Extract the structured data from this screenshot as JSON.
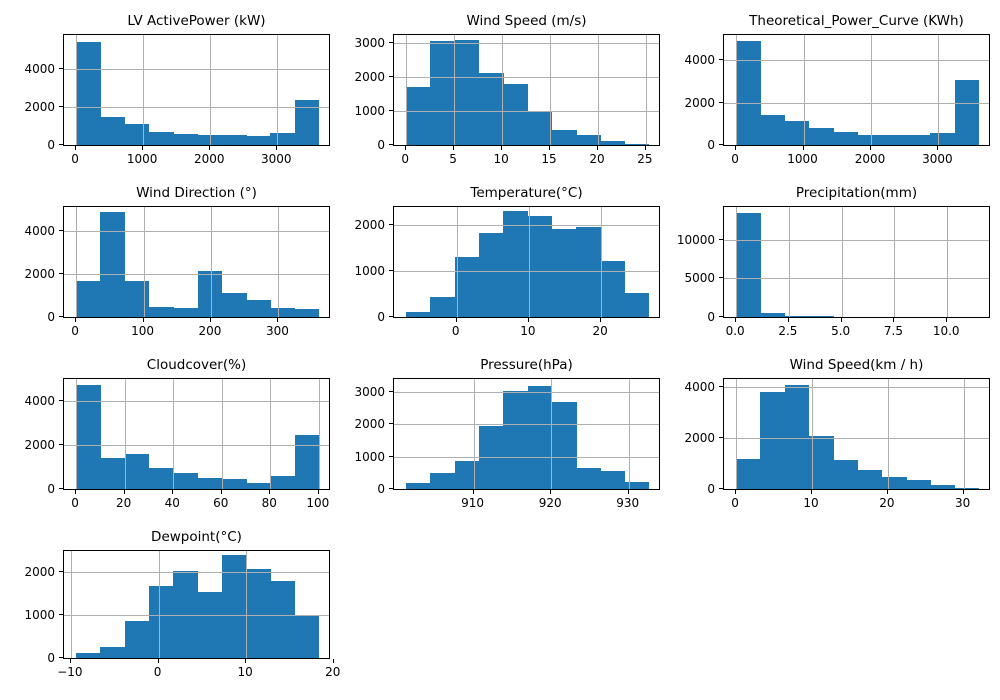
{
  "figure": {
    "background": "#ffffff",
    "bar_color": "#1f77b4",
    "grid_color": "#b0b0b0",
    "spine_color": "#000000",
    "text_color": "#000000",
    "grid": true,
    "layout": "4 rows x 3 cols, last row has 1 subplot"
  },
  "chart_data": [
    {
      "id": "lv-activepower",
      "type": "bar",
      "subtype": "histogram",
      "title": "LV ActivePower (kW)",
      "row": 0,
      "col": 0,
      "bin_start": 0,
      "bin_end": 3620,
      "bins": 10,
      "counts": [
        5440,
        1500,
        1090,
        700,
        560,
        550,
        530,
        500,
        620,
        2350
      ],
      "xlim": [
        -181,
        3801
      ],
      "ylim": [
        0,
        5800
      ],
      "xticks": [
        0,
        1000,
        2000,
        3000
      ],
      "xtick_labels": [
        "0",
        "1000",
        "2000",
        "3000"
      ],
      "yticks": [
        0,
        2000,
        4000
      ],
      "ytick_labels": [
        "0",
        "2000",
        "4000"
      ],
      "grid": true
    },
    {
      "id": "wind-speed-ms",
      "type": "bar",
      "subtype": "histogram",
      "title": "Wind Speed (m/s)",
      "row": 0,
      "col": 1,
      "bin_start": 0,
      "bin_end": 25.3,
      "bins": 10,
      "counts": [
        1720,
        3080,
        3100,
        2120,
        1790,
        1010,
        440,
        310,
        120,
        40
      ],
      "xlim": [
        -1.27,
        26.57
      ],
      "ylim": [
        0,
        3250
      ],
      "xticks": [
        0,
        5,
        10,
        15,
        20,
        25
      ],
      "xtick_labels": [
        "0",
        "5",
        "10",
        "15",
        "20",
        "25"
      ],
      "yticks": [
        0,
        1000,
        2000,
        3000
      ],
      "ytick_labels": [
        "0",
        "1000",
        "2000",
        "3000"
      ],
      "grid": true
    },
    {
      "id": "theoretical-power-curve",
      "type": "bar",
      "subtype": "histogram",
      "title": "Theoretical_Power_Curve (KWh)",
      "row": 0,
      "col": 2,
      "bin_start": 0,
      "bin_end": 3600,
      "bins": 10,
      "counts": [
        4900,
        1400,
        1130,
        790,
        600,
        450,
        460,
        470,
        560,
        3060
      ],
      "xlim": [
        -180,
        3780
      ],
      "ylim": [
        0,
        5200
      ],
      "xticks": [
        0,
        1000,
        2000,
        3000
      ],
      "xtick_labels": [
        "0",
        "1000",
        "2000",
        "3000"
      ],
      "yticks": [
        0,
        2000,
        4000
      ],
      "ytick_labels": [
        "0",
        "2000",
        "4000"
      ],
      "grid": true
    },
    {
      "id": "wind-direction",
      "type": "bar",
      "subtype": "histogram",
      "title": "Wind Direction (°)",
      "row": 1,
      "col": 0,
      "bin_start": 0,
      "bin_end": 360,
      "bins": 10,
      "counts": [
        1680,
        4850,
        1680,
        470,
        420,
        2150,
        1120,
        800,
        440,
        390
      ],
      "xlim": [
        -18,
        378
      ],
      "ylim": [
        0,
        5100
      ],
      "xticks": [
        0,
        100,
        200,
        300
      ],
      "xtick_labels": [
        "0",
        "100",
        "200",
        "300"
      ],
      "yticks": [
        0,
        2000,
        4000
      ],
      "ytick_labels": [
        "0",
        "2000",
        "4000"
      ],
      "grid": true
    },
    {
      "id": "temperature",
      "type": "bar",
      "subtype": "histogram",
      "title": "Temperature(°C)",
      "row": 1,
      "col": 1,
      "bin_start": -7,
      "bin_end": 26.6,
      "bins": 10,
      "counts": [
        110,
        440,
        1310,
        1830,
        2310,
        2200,
        1930,
        1970,
        1230,
        530
      ],
      "xlim": [
        -8.68,
        28.28
      ],
      "ylim": [
        0,
        2400
      ],
      "xticks": [
        0,
        10,
        20
      ],
      "xtick_labels": [
        "0",
        "10",
        "20"
      ],
      "yticks": [
        0,
        1000,
        2000
      ],
      "ytick_labels": [
        "0",
        "1000",
        "2000"
      ],
      "grid": true
    },
    {
      "id": "precipitation",
      "type": "bar",
      "subtype": "histogram",
      "title": "Precipitation(mm)",
      "row": 1,
      "col": 2,
      "bin_start": 0,
      "bin_end": 11.5,
      "bins": 10,
      "counts": [
        13450,
        470,
        170,
        160,
        20,
        0,
        0,
        0,
        0,
        10
      ],
      "xlim": [
        -0.575,
        12.075
      ],
      "ylim": [
        0,
        14200
      ],
      "xticks": [
        0,
        2.5,
        5,
        7.5,
        10
      ],
      "xtick_labels": [
        "0.0",
        "2.5",
        "5.0",
        "7.5",
        "10.0"
      ],
      "yticks": [
        0,
        5000,
        10000
      ],
      "ytick_labels": [
        "0",
        "5000",
        "10000"
      ],
      "grid": true
    },
    {
      "id": "cloudcover",
      "type": "bar",
      "subtype": "histogram",
      "title": "Cloudcover(%)",
      "row": 2,
      "col": 0,
      "bin_start": 0,
      "bin_end": 100,
      "bins": 10,
      "counts": [
        4720,
        1420,
        1600,
        940,
        750,
        520,
        450,
        280,
        570,
        2440
      ],
      "xlim": [
        -5,
        105
      ],
      "ylim": [
        0,
        5000
      ],
      "xticks": [
        0,
        20,
        40,
        60,
        80,
        100
      ],
      "xtick_labels": [
        "0",
        "20",
        "40",
        "60",
        "80",
        "100"
      ],
      "yticks": [
        0,
        2000,
        4000
      ],
      "ytick_labels": [
        "0",
        "2000",
        "4000"
      ],
      "grid": true
    },
    {
      "id": "pressure",
      "type": "bar",
      "subtype": "histogram",
      "title": "Pressure(hPa)",
      "row": 2,
      "col": 1,
      "bin_start": 901.3,
      "bin_end": 932.6,
      "bins": 10,
      "counts": [
        180,
        510,
        880,
        1950,
        3020,
        3180,
        2680,
        660,
        550,
        220
      ],
      "xlim": [
        899.735,
        934.165
      ],
      "ylim": [
        0,
        3400
      ],
      "xticks": [
        910,
        920,
        930
      ],
      "xtick_labels": [
        "910",
        "920",
        "930"
      ],
      "yticks": [
        0,
        1000,
        2000,
        3000
      ],
      "ytick_labels": [
        "0",
        "1000",
        "2000",
        "3000"
      ],
      "grid": true
    },
    {
      "id": "wind-speed-kmh",
      "type": "bar",
      "subtype": "histogram",
      "title": "Wind Speed(km / h)",
      "row": 2,
      "col": 2,
      "bin_start": 0,
      "bin_end": 32,
      "bins": 10,
      "counts": [
        1190,
        3790,
        4050,
        2090,
        1150,
        740,
        460,
        360,
        140,
        40
      ],
      "xlim": [
        -1.6,
        33.6
      ],
      "ylim": [
        0,
        4300
      ],
      "xticks": [
        0,
        10,
        20,
        30
      ],
      "xtick_labels": [
        "0",
        "10",
        "20",
        "30"
      ],
      "yticks": [
        0,
        2000,
        4000
      ],
      "ytick_labels": [
        "0",
        "2000",
        "4000"
      ],
      "grid": true
    },
    {
      "id": "dewpoint",
      "type": "bar",
      "subtype": "histogram",
      "title": "Dewpoint(°C)",
      "row": 3,
      "col": 0,
      "bin_start": -9.4,
      "bin_end": 18.3,
      "bins": 10,
      "counts": [
        110,
        260,
        870,
        1680,
        2030,
        1550,
        2400,
        2080,
        1790,
        990
      ],
      "xlim": [
        -10.79,
        19.69
      ],
      "ylim": [
        0,
        2500
      ],
      "xticks": [
        -10,
        0,
        10,
        20
      ],
      "xtick_labels": [
        "−10",
        "0",
        "10",
        "20"
      ],
      "yticks": [
        0,
        1000,
        2000
      ],
      "ytick_labels": [
        "0",
        "1000",
        "2000"
      ],
      "grid": true
    }
  ]
}
